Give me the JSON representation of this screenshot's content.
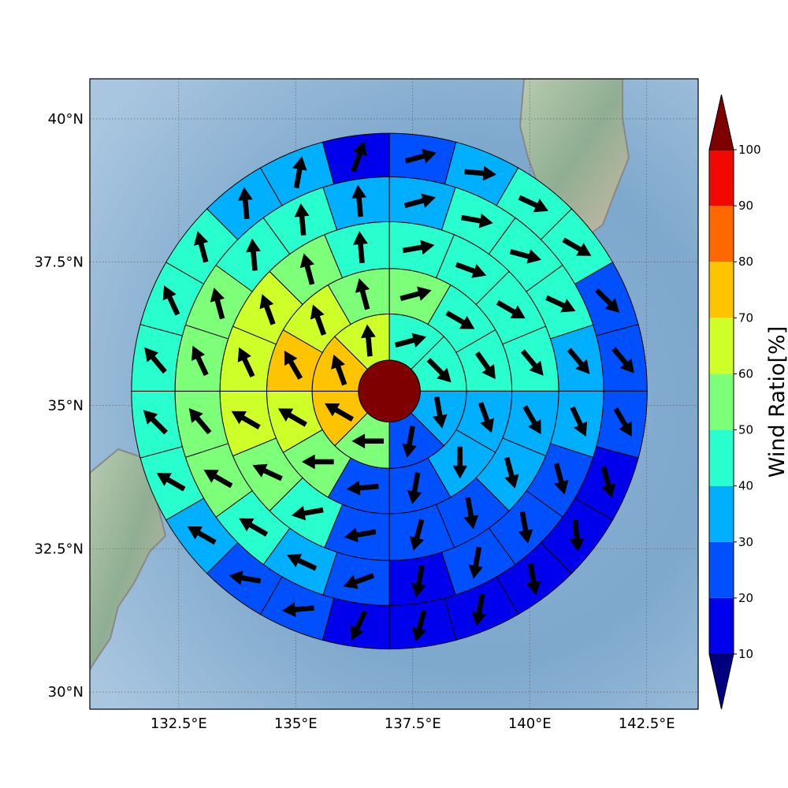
{
  "chart_data": {
    "type": "heatmap",
    "subtype": "polar-sector map with wind direction arrows",
    "map": {
      "lon_range": [
        130.6,
        143.6
      ],
      "lat_range": [
        29.7,
        40.7
      ],
      "x_ticks": [
        {
          "value": 132.5,
          "label": "132.5°E"
        },
        {
          "value": 135,
          "label": "135°E"
        },
        {
          "value": 137.5,
          "label": "137.5°E"
        },
        {
          "value": 140,
          "label": "140°E"
        },
        {
          "value": 142.5,
          "label": "142.5°E"
        }
      ],
      "y_ticks": [
        {
          "value": 30,
          "label": "30°N"
        },
        {
          "value": 32.5,
          "label": "32.5°N"
        },
        {
          "value": 35,
          "label": "35°N"
        },
        {
          "value": 37.5,
          "label": "37.5°N"
        },
        {
          "value": 40,
          "label": "40°N"
        }
      ],
      "grid": true,
      "grid_style": "dotted",
      "background": "shaded relief, ocean blue"
    },
    "center": {
      "lon": 137.0,
      "lat": 35.25,
      "wind_ratio": 100
    },
    "ring_radii_deg": [
      0.66,
      1.65,
      2.62,
      3.62,
      4.58,
      5.51
    ],
    "sectors_per_ring": [
      8,
      12,
      16,
      20,
      24
    ],
    "cells": [
      [
        {
          "ratio": 40,
          "dir": 75
        },
        {
          "ratio": 40,
          "dir": 135
        },
        {
          "ratio": 35,
          "dir": 170
        },
        {
          "ratio": 25,
          "dir": 190
        },
        {
          "ratio": 55,
          "dir": 270
        },
        {
          "ratio": 75,
          "dir": 300
        },
        {
          "ratio": 75,
          "dir": 340
        },
        {
          "ratio": 65,
          "dir": 355
        }
      ],
      [
        {
          "ratio": 55,
          "dir": 75
        },
        {
          "ratio": 45,
          "dir": 120
        },
        {
          "ratio": 45,
          "dir": 145
        },
        {
          "ratio": 35,
          "dir": 160
        },
        {
          "ratio": 35,
          "dir": 180
        },
        {
          "ratio": 25,
          "dir": 190
        },
        {
          "ratio": 25,
          "dir": 265
        },
        {
          "ratio": 55,
          "dir": 270
        },
        {
          "ratio": 65,
          "dir": 300
        },
        {
          "ratio": 75,
          "dir": 330
        },
        {
          "ratio": 65,
          "dir": 340
        },
        {
          "ratio": 55,
          "dir": 345
        }
      ],
      [
        {
          "ratio": 45,
          "dir": 80
        },
        {
          "ratio": 45,
          "dir": 110
        },
        {
          "ratio": 45,
          "dir": 120
        },
        {
          "ratio": 45,
          "dir": 140
        },
        {
          "ratio": 35,
          "dir": 150
        },
        {
          "ratio": 35,
          "dir": 165
        },
        {
          "ratio": 25,
          "dir": 170
        },
        {
          "ratio": 25,
          "dir": 195
        },
        {
          "ratio": 25,
          "dir": 260
        },
        {
          "ratio": 45,
          "dir": 260
        },
        {
          "ratio": 55,
          "dir": 295
        },
        {
          "ratio": 65,
          "dir": 300
        },
        {
          "ratio": 65,
          "dir": 335
        },
        {
          "ratio": 65,
          "dir": 340
        },
        {
          "ratio": 55,
          "dir": 345
        },
        {
          "ratio": 45,
          "dir": 355
        }
      ],
      [
        {
          "ratio": 35,
          "dir": 75
        },
        {
          "ratio": 45,
          "dir": 100
        },
        {
          "ratio": 45,
          "dir": 105
        },
        {
          "ratio": 45,
          "dir": 115
        },
        {
          "ratio": 35,
          "dir": 140
        },
        {
          "ratio": 35,
          "dir": 155
        },
        {
          "ratio": 25,
          "dir": 165
        },
        {
          "ratio": 25,
          "dir": 170
        },
        {
          "ratio": 25,
          "dir": 190
        },
        {
          "ratio": 15,
          "dir": 190
        },
        {
          "ratio": 25,
          "dir": 250
        },
        {
          "ratio": 35,
          "dir": 295
        },
        {
          "ratio": 45,
          "dir": 300
        },
        {
          "ratio": 55,
          "dir": 300
        },
        {
          "ratio": 55,
          "dir": 320
        },
        {
          "ratio": 55,
          "dir": 335
        },
        {
          "ratio": 55,
          "dir": 345
        },
        {
          "ratio": 45,
          "dir": 355
        },
        {
          "ratio": 45,
          "dir": 355
        },
        {
          "ratio": 35,
          "dir": 355
        }
      ],
      [
        {
          "ratio": 25,
          "dir": 75
        },
        {
          "ratio": 35,
          "dir": 95
        },
        {
          "ratio": 45,
          "dir": 115
        },
        {
          "ratio": 45,
          "dir": 120
        },
        {
          "ratio": 25,
          "dir": 135
        },
        {
          "ratio": 25,
          "dir": 140
        },
        {
          "ratio": 25,
          "dir": 150
        },
        {
          "ratio": 15,
          "dir": 165
        },
        {
          "ratio": 15,
          "dir": 175
        },
        {
          "ratio": 15,
          "dir": 170
        },
        {
          "ratio": 15,
          "dir": 190
        },
        {
          "ratio": 15,
          "dir": 195
        },
        {
          "ratio": 15,
          "dir": 205
        },
        {
          "ratio": 25,
          "dir": 265
        },
        {
          "ratio": 25,
          "dir": 280
        },
        {
          "ratio": 35,
          "dir": 300
        },
        {
          "ratio": 45,
          "dir": 300
        },
        {
          "ratio": 45,
          "dir": 315
        },
        {
          "ratio": 45,
          "dir": 320
        },
        {
          "ratio": 45,
          "dir": 335
        },
        {
          "ratio": 45,
          "dir": 345
        },
        {
          "ratio": 35,
          "dir": 355
        },
        {
          "ratio": 35,
          "dir": 10
        },
        {
          "ratio": 15,
          "dir": 20
        }
      ]
    ],
    "colorbar": {
      "label": "Wind Ratio[%]",
      "ticks": [
        10,
        20,
        30,
        40,
        50,
        60,
        70,
        80,
        90,
        100
      ],
      "extend": "both",
      "levels": [
        {
          "min": 0,
          "max": 10,
          "color": "#00007f"
        },
        {
          "min": 10,
          "max": 20,
          "color": "#0000ec"
        },
        {
          "min": 20,
          "max": 30,
          "color": "#0050ff"
        },
        {
          "min": 30,
          "max": 40,
          "color": "#00b0ff"
        },
        {
          "min": 40,
          "max": 50,
          "color": "#29ffce"
        },
        {
          "min": 50,
          "max": 60,
          "color": "#7dff7a"
        },
        {
          "min": 60,
          "max": 70,
          "color": "#ceff29"
        },
        {
          "min": 70,
          "max": 80,
          "color": "#ffc400"
        },
        {
          "min": 80,
          "max": 90,
          "color": "#ff6800"
        },
        {
          "min": 90,
          "max": 100,
          "color": "#f10800"
        },
        {
          "min": 100,
          "max": 110,
          "color": "#7f0000"
        }
      ]
    }
  }
}
